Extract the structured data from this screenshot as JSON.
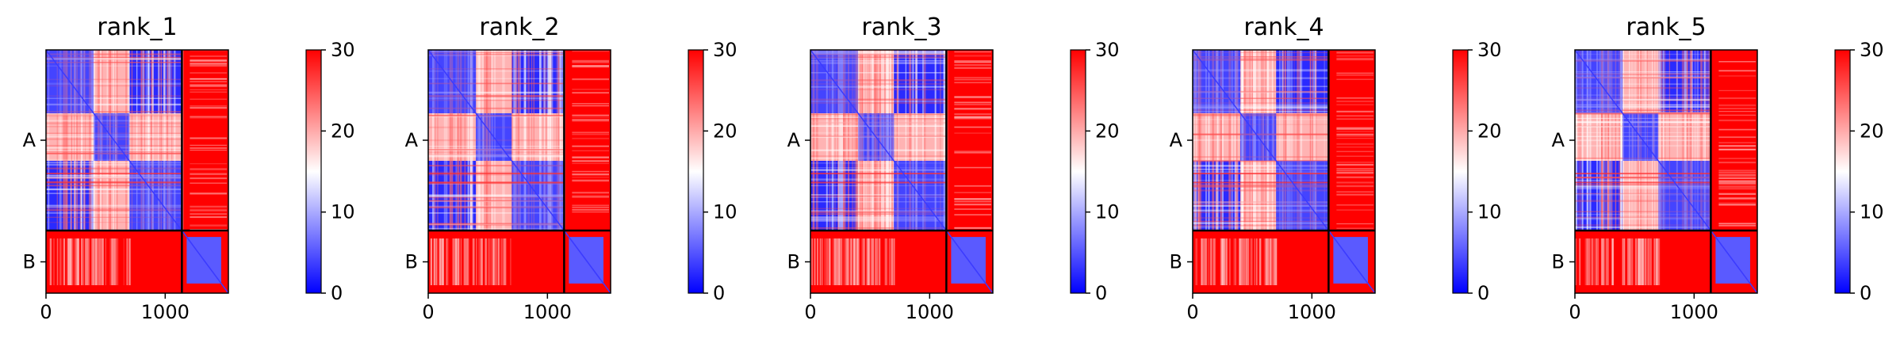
{
  "figure": {
    "background": "#ffffff"
  },
  "chart_data": [
    {
      "type": "heatmap",
      "title": "rank_1",
      "x_ticks": [
        0,
        1000
      ],
      "x_range": [
        0,
        1530
      ],
      "chain_boundary": 1140,
      "y_categories": [
        "A",
        "B"
      ],
      "pattern": {
        "a_domain_end": 400,
        "a_mid_end": 700,
        "b_inner_start": 1180,
        "b_inner_end": 1470
      },
      "colorbar": {
        "ticks": [
          0,
          10,
          20,
          30
        ],
        "range": [
          0,
          30
        ],
        "colors": [
          "#0000ff",
          "#ffffff",
          "#ff0000"
        ]
      }
    },
    {
      "type": "heatmap",
      "title": "rank_2",
      "x_ticks": [
        0,
        1000
      ],
      "x_range": [
        0,
        1530
      ],
      "chain_boundary": 1140,
      "y_categories": [
        "A",
        "B"
      ],
      "pattern": {
        "a_domain_end": 400,
        "a_mid_end": 700,
        "b_inner_start": 1180,
        "b_inner_end": 1470
      },
      "colorbar": {
        "ticks": [
          0,
          10,
          20,
          30
        ],
        "range": [
          0,
          30
        ],
        "colors": [
          "#0000ff",
          "#ffffff",
          "#ff0000"
        ]
      }
    },
    {
      "type": "heatmap",
      "title": "rank_3",
      "x_ticks": [
        0,
        1000
      ],
      "x_range": [
        0,
        1530
      ],
      "chain_boundary": 1140,
      "y_categories": [
        "A",
        "B"
      ],
      "pattern": {
        "a_domain_end": 400,
        "a_mid_end": 700,
        "b_inner_start": 1180,
        "b_inner_end": 1470
      },
      "colorbar": {
        "ticks": [
          0,
          10,
          20,
          30
        ],
        "range": [
          0,
          30
        ],
        "colors": [
          "#0000ff",
          "#ffffff",
          "#ff0000"
        ]
      }
    },
    {
      "type": "heatmap",
      "title": "rank_4",
      "x_ticks": [
        0,
        1000
      ],
      "x_range": [
        0,
        1530
      ],
      "chain_boundary": 1140,
      "y_categories": [
        "A",
        "B"
      ],
      "pattern": {
        "a_domain_end": 400,
        "a_mid_end": 700,
        "b_inner_start": 1180,
        "b_inner_end": 1470
      },
      "colorbar": {
        "ticks": [
          0,
          10,
          20,
          30
        ],
        "range": [
          0,
          30
        ],
        "colors": [
          "#0000ff",
          "#ffffff",
          "#ff0000"
        ]
      }
    },
    {
      "type": "heatmap",
      "title": "rank_5",
      "x_ticks": [
        0,
        1000
      ],
      "x_range": [
        0,
        1530
      ],
      "chain_boundary": 1140,
      "y_categories": [
        "A",
        "B"
      ],
      "pattern": {
        "a_domain_end": 400,
        "a_mid_end": 700,
        "b_inner_start": 1180,
        "b_inner_end": 1470
      },
      "colorbar": {
        "ticks": [
          0,
          10,
          20,
          30
        ],
        "range": [
          0,
          30
        ],
        "colors": [
          "#0000ff",
          "#ffffff",
          "#ff0000"
        ]
      }
    }
  ]
}
